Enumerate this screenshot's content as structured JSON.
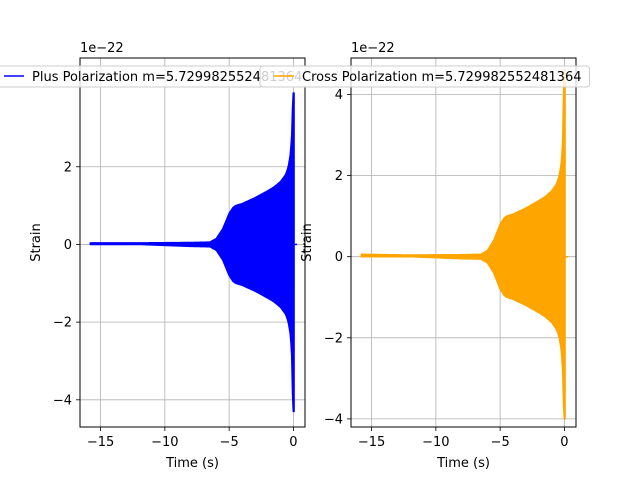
{
  "chart_data": [
    {
      "type": "line",
      "title": "",
      "xlabel": "Time (s)",
      "ylabel": "Strain",
      "offset_label": "1e−22",
      "xlim": [
        -16.6,
        0.9
      ],
      "ylim": [
        -4.7,
        4.8
      ],
      "xticks": [
        -15,
        -10,
        -5,
        0
      ],
      "xtick_labels": [
        "−15",
        "−10",
        "−5",
        "0"
      ],
      "yticks": [
        -4,
        -2,
        0,
        2
      ],
      "ytick_labels": [
        "−4",
        "−2",
        "0",
        "2"
      ],
      "grid": true,
      "legend_position": "top",
      "series": [
        {
          "name": "Plus Polarization m=5.729982552481364",
          "color": "#0000ff",
          "time_start": -15.8,
          "time_end": 0.05,
          "envelope": {
            "t": [
              -15.8,
              -12,
              -8,
              -6.5,
              -6,
              -5.5,
              -5,
              -4.7,
              -4.5,
              -4,
              -3,
              -2,
              -1.5,
              -1,
              -0.6,
              -0.4,
              -0.25,
              -0.15,
              -0.1,
              -0.05,
              0.0
            ],
            "max": [
              0.04,
              0.04,
              0.05,
              0.06,
              0.15,
              0.4,
              0.8,
              0.95,
              1.0,
              1.05,
              1.2,
              1.38,
              1.48,
              1.62,
              1.8,
              2.0,
              2.3,
              2.7,
              3.0,
              3.9,
              3.9
            ],
            "min": [
              0.0,
              0.0,
              -0.05,
              -0.06,
              -0.15,
              -0.4,
              -0.8,
              -0.95,
              -1.0,
              -1.05,
              -1.2,
              -1.38,
              -1.48,
              -1.62,
              -1.8,
              -2.0,
              -2.3,
              -2.7,
              -3.2,
              -4.3,
              -4.3
            ]
          }
        },
        {
          "name": "Cross Polarization m=5.729982552481364",
          "color": "#ffa500",
          "time_start": -15.8,
          "time_end": 0.05,
          "envelope": {
            "t": [
              -15.8,
              -12,
              -8,
              -6.5,
              -6,
              -5.5,
              -5,
              -4.7,
              -4.5,
              -4,
              -3,
              -2,
              -1.5,
              -1,
              -0.6,
              -0.4,
              -0.25,
              -0.15,
              -0.1,
              -0.05,
              0.0
            ],
            "max": [
              0.06,
              0.04,
              0.05,
              0.06,
              0.15,
              0.4,
              0.8,
              0.95,
              1.0,
              1.05,
              1.2,
              1.38,
              1.48,
              1.62,
              1.8,
              2.0,
              2.3,
              2.7,
              3.2,
              4.6,
              4.6
            ],
            "min": [
              0.0,
              0.0,
              -0.05,
              -0.06,
              -0.15,
              -0.4,
              -0.8,
              -0.95,
              -1.0,
              -1.05,
              -1.2,
              -1.38,
              -1.48,
              -1.62,
              -1.8,
              -2.0,
              -2.3,
              -2.7,
              -3.1,
              -4.0,
              -4.0
            ]
          }
        }
      ]
    },
    {
      "type": "line",
      "title": "",
      "xlabel": "Time (s)",
      "ylabel": "Strain",
      "offset_label": "1e−22",
      "xlim": [
        -16.6,
        0.9
      ],
      "ylim": [
        -4.2,
        4.9
      ],
      "xticks": [
        -15,
        -10,
        -5,
        0
      ],
      "xtick_labels": [
        "−15",
        "−10",
        "−5",
        "0"
      ],
      "yticks": [
        -4,
        -2,
        0,
        2,
        4
      ],
      "ytick_labels": [
        "−4",
        "−2",
        "0",
        "2",
        "4"
      ],
      "grid": true,
      "legend_position": "top",
      "series": [
        {
          "name": "Cross Polarization m=5.729982552481364",
          "color": "#ffa500",
          "time_start": -15.8,
          "time_end": 0.05,
          "envelope": {
            "t": [
              -15.8,
              -12,
              -8,
              -6.5,
              -6,
              -5.5,
              -5,
              -4.7,
              -4.5,
              -4,
              -3,
              -2,
              -1.5,
              -1,
              -0.6,
              -0.4,
              -0.25,
              -0.15,
              -0.1,
              -0.05,
              0.0
            ],
            "max": [
              0.06,
              0.04,
              0.05,
              0.06,
              0.15,
              0.4,
              0.8,
              0.95,
              1.0,
              1.05,
              1.2,
              1.38,
              1.48,
              1.62,
              1.8,
              2.0,
              2.3,
              2.7,
              3.2,
              4.6,
              4.6
            ],
            "min": [
              0.0,
              0.0,
              -0.05,
              -0.06,
              -0.15,
              -0.4,
              -0.8,
              -0.95,
              -1.0,
              -1.05,
              -1.2,
              -1.38,
              -1.48,
              -1.62,
              -1.8,
              -2.0,
              -2.3,
              -2.7,
              -3.1,
              -4.0,
              -4.0
            ]
          }
        }
      ]
    }
  ]
}
